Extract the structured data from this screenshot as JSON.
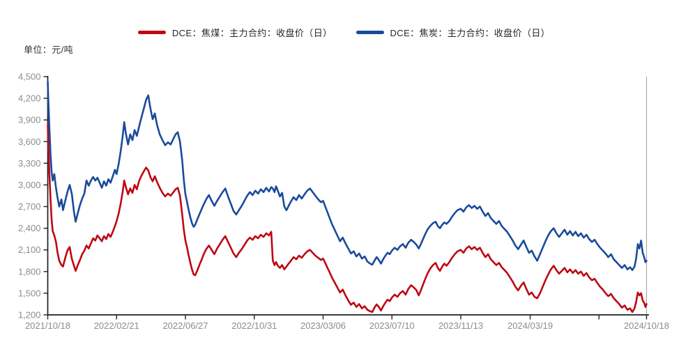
{
  "legend": {
    "items": [
      {
        "label": "DCE：焦煤：主力合约：收盘价（日）",
        "color": "#BE0712"
      },
      {
        "label": "DCE：焦炭：主力合约：收盘价（日）",
        "color": "#1A4A9C"
      }
    ]
  },
  "unit_label": "单位：元/吨",
  "colors": {
    "coking_coal_red": "#BE0712",
    "coke_blue": "#1A4A9C",
    "axis": "#1f1f1f",
    "tick_label": "#8c8c8c",
    "marker_line": "#a6a6a6",
    "background": "#ffffff"
  },
  "chart_data": {
    "type": "line",
    "title": "",
    "ylabel": "单位：元/吨",
    "xlabel": "",
    "grid": false,
    "legend_position": "top-center",
    "ylim": [
      1200,
      4500
    ],
    "ytick_step": 300,
    "ytick_values": [
      1200,
      1500,
      1800,
      2100,
      2400,
      2700,
      3000,
      3300,
      3600,
      3900,
      4200,
      4500
    ],
    "ytick_labels": [
      "1,200",
      "1,500",
      "1,800",
      "2,100",
      "2,400",
      "2,700",
      "3,000",
      "3,300",
      "3,600",
      "3,900",
      "4,200",
      "4,500"
    ],
    "x_start_date": "2021/10/18",
    "x_end_date": "2024/10/18",
    "x_total_days": 1096,
    "xticks": [
      {
        "d": 0,
        "label": "2021/10/18"
      },
      {
        "d": 126,
        "label": "2022/02/21"
      },
      {
        "d": 252,
        "label": "2022/06/27"
      },
      {
        "d": 378,
        "label": "2022/10/31"
      },
      {
        "d": 504,
        "label": "2023/03/06"
      },
      {
        "d": 630,
        "label": "2023/07/10"
      },
      {
        "d": 756,
        "label": "2023/11/13"
      },
      {
        "d": 883,
        "label": "2024/03/19"
      },
      {
        "d": 1009,
        "label": ""
      },
      {
        "d": 1096,
        "label": "2024/10/18"
      }
    ],
    "marker_line_d": 1096,
    "days": [
      0,
      1,
      3,
      5,
      7,
      9,
      12,
      15,
      18,
      21,
      25,
      28,
      32,
      36,
      40,
      44,
      48,
      51,
      55,
      59,
      63,
      67,
      71,
      75,
      79,
      83,
      87,
      91,
      95,
      99,
      103,
      107,
      111,
      115,
      119,
      123,
      126,
      130,
      134,
      137,
      140,
      143,
      147,
      151,
      155,
      159,
      163,
      167,
      171,
      176,
      180,
      184,
      188,
      192,
      196,
      200,
      205,
      210,
      215,
      220,
      225,
      230,
      234,
      238,
      242,
      246,
      249,
      252,
      255,
      258,
      261,
      264,
      267,
      270,
      274,
      278,
      282,
      286,
      290,
      295,
      300,
      305,
      310,
      315,
      320,
      325,
      330,
      335,
      340,
      345,
      350,
      355,
      360,
      365,
      370,
      375,
      380,
      385,
      390,
      395,
      400,
      405,
      409,
      412,
      415,
      418,
      421,
      425,
      429,
      433,
      437,
      441,
      445,
      450,
      455,
      460,
      465,
      470,
      475,
      480,
      485,
      490,
      495,
      500,
      504,
      508,
      512,
      516,
      520,
      525,
      530,
      535,
      540,
      545,
      550,
      555,
      560,
      565,
      570,
      575,
      580,
      585,
      590,
      594,
      598,
      602,
      606,
      610,
      614,
      618,
      622,
      626,
      630,
      635,
      640,
      645,
      650,
      655,
      660,
      665,
      670,
      675,
      679,
      683,
      687,
      691,
      695,
      700,
      705,
      710,
      714,
      718,
      722,
      726,
      730,
      735,
      740,
      745,
      750,
      756,
      761,
      766,
      771,
      776,
      781,
      786,
      791,
      796,
      801,
      806,
      811,
      816,
      821,
      826,
      831,
      836,
      841,
      846,
      851,
      856,
      861,
      866,
      871,
      876,
      881,
      886,
      891,
      896,
      901,
      906,
      911,
      916,
      921,
      926,
      931,
      936,
      941,
      946,
      951,
      956,
      961,
      966,
      971,
      976,
      981,
      986,
      991,
      996,
      1001,
      1006,
      1011,
      1016,
      1021,
      1026,
      1031,
      1036,
      1041,
      1046,
      1051,
      1056,
      1061,
      1066,
      1070,
      1074,
      1077,
      1080,
      1083,
      1086,
      1089,
      1092,
      1094,
      1096
    ],
    "series": [
      {
        "name": "DCE：焦煤：主力合约：收盘价（日）",
        "color": "#BE0712",
        "values": [
          3840,
          3560,
          3150,
          2820,
          2530,
          2360,
          2300,
          2210,
          2060,
          1950,
          1890,
          1870,
          1990,
          2090,
          2140,
          1980,
          1880,
          1810,
          1890,
          1960,
          2040,
          2090,
          2160,
          2120,
          2190,
          2260,
          2230,
          2300,
          2260,
          2220,
          2290,
          2250,
          2320,
          2280,
          2350,
          2430,
          2500,
          2610,
          2760,
          2900,
          3060,
          2970,
          2870,
          2950,
          2890,
          3000,
          2940,
          3050,
          3120,
          3190,
          3240,
          3200,
          3110,
          3050,
          3120,
          3040,
          2960,
          2890,
          2840,
          2880,
          2850,
          2900,
          2940,
          2960,
          2850,
          2600,
          2380,
          2230,
          2130,
          2020,
          1920,
          1830,
          1760,
          1750,
          1820,
          1900,
          1970,
          2050,
          2110,
          2160,
          2100,
          2040,
          2120,
          2180,
          2240,
          2290,
          2210,
          2130,
          2050,
          2000,
          2060,
          2110,
          2170,
          2230,
          2270,
          2240,
          2290,
          2260,
          2310,
          2280,
          2330,
          2300,
          2350,
          1950,
          1890,
          1930,
          1880,
          1850,
          1890,
          1830,
          1870,
          1910,
          1950,
          2000,
          1970,
          2020,
          1990,
          2040,
          2080,
          2100,
          2060,
          2020,
          1990,
          1960,
          1980,
          1920,
          1850,
          1790,
          1720,
          1650,
          1580,
          1510,
          1550,
          1470,
          1400,
          1340,
          1370,
          1310,
          1350,
          1290,
          1320,
          1270,
          1250,
          1240,
          1300,
          1345,
          1310,
          1260,
          1320,
          1370,
          1410,
          1390,
          1440,
          1480,
          1450,
          1500,
          1530,
          1480,
          1560,
          1610,
          1580,
          1540,
          1470,
          1540,
          1620,
          1700,
          1770,
          1840,
          1890,
          1920,
          1850,
          1810,
          1870,
          1910,
          1880,
          1930,
          1990,
          2040,
          2080,
          2100,
          2060,
          2120,
          2150,
          2110,
          2140,
          2100,
          2130,
          2060,
          2000,
          2040,
          1970,
          1930,
          1890,
          1920,
          1860,
          1820,
          1780,
          1720,
          1660,
          1590,
          1540,
          1600,
          1650,
          1560,
          1480,
          1510,
          1450,
          1430,
          1500,
          1590,
          1680,
          1760,
          1830,
          1880,
          1820,
          1770,
          1810,
          1850,
          1790,
          1830,
          1780,
          1820,
          1770,
          1800,
          1740,
          1780,
          1720,
          1680,
          1700,
          1640,
          1590,
          1550,
          1500,
          1460,
          1490,
          1430,
          1390,
          1350,
          1300,
          1330,
          1270,
          1290,
          1240,
          1290,
          1380,
          1510,
          1470,
          1500,
          1400,
          1360,
          1310,
          1350
        ]
      },
      {
        "name": "DCE：焦炭：主力合约：收盘价（日）",
        "color": "#1A4A9C",
        "values": [
          4430,
          4180,
          3780,
          3440,
          3190,
          3060,
          3150,
          2960,
          2820,
          2700,
          2800,
          2650,
          2780,
          2900,
          3000,
          2880,
          2630,
          2490,
          2610,
          2720,
          2810,
          2880,
          3060,
          2990,
          3060,
          3110,
          3060,
          3100,
          3030,
          2960,
          3050,
          2990,
          3080,
          3030,
          3120,
          3210,
          3150,
          3300,
          3490,
          3670,
          3870,
          3710,
          3560,
          3700,
          3620,
          3760,
          3680,
          3800,
          3920,
          4060,
          4180,
          4240,
          4060,
          3910,
          3990,
          3830,
          3700,
          3620,
          3550,
          3590,
          3560,
          3640,
          3700,
          3730,
          3600,
          3350,
          3070,
          2870,
          2760,
          2650,
          2550,
          2470,
          2420,
          2450,
          2530,
          2600,
          2670,
          2740,
          2800,
          2860,
          2780,
          2710,
          2780,
          2840,
          2900,
          2950,
          2840,
          2740,
          2640,
          2590,
          2650,
          2710,
          2780,
          2850,
          2900,
          2860,
          2920,
          2880,
          2940,
          2900,
          2960,
          2910,
          2970,
          2950,
          2900,
          2980,
          2920,
          2840,
          2890,
          2700,
          2650,
          2710,
          2770,
          2830,
          2790,
          2860,
          2810,
          2870,
          2920,
          2950,
          2900,
          2850,
          2800,
          2760,
          2780,
          2700,
          2620,
          2540,
          2460,
          2380,
          2300,
          2220,
          2270,
          2190,
          2120,
          2050,
          2080,
          2010,
          2050,
          1980,
          2010,
          1940,
          1910,
          1895,
          1950,
          2000,
          1960,
          1910,
          1970,
          2020,
          2060,
          2040,
          2090,
          2130,
          2100,
          2150,
          2180,
          2130,
          2200,
          2240,
          2210,
          2170,
          2120,
          2180,
          2250,
          2320,
          2380,
          2430,
          2470,
          2490,
          2430,
          2400,
          2450,
          2480,
          2460,
          2500,
          2560,
          2610,
          2650,
          2670,
          2630,
          2690,
          2720,
          2680,
          2710,
          2670,
          2700,
          2630,
          2570,
          2610,
          2540,
          2500,
          2460,
          2500,
          2430,
          2390,
          2350,
          2290,
          2230,
          2160,
          2110,
          2170,
          2230,
          2140,
          2060,
          2090,
          2010,
          1950,
          2040,
          2130,
          2220,
          2300,
          2360,
          2400,
          2330,
          2280,
          2330,
          2380,
          2310,
          2360,
          2300,
          2350,
          2290,
          2330,
          2270,
          2310,
          2250,
          2210,
          2240,
          2180,
          2130,
          2090,
          2050,
          2000,
          2040,
          1970,
          1930,
          1890,
          1850,
          1890,
          1830,
          1860,
          1820,
          1870,
          1980,
          2180,
          2120,
          2230,
          2060,
          1990,
          1930,
          1950
        ]
      }
    ]
  }
}
